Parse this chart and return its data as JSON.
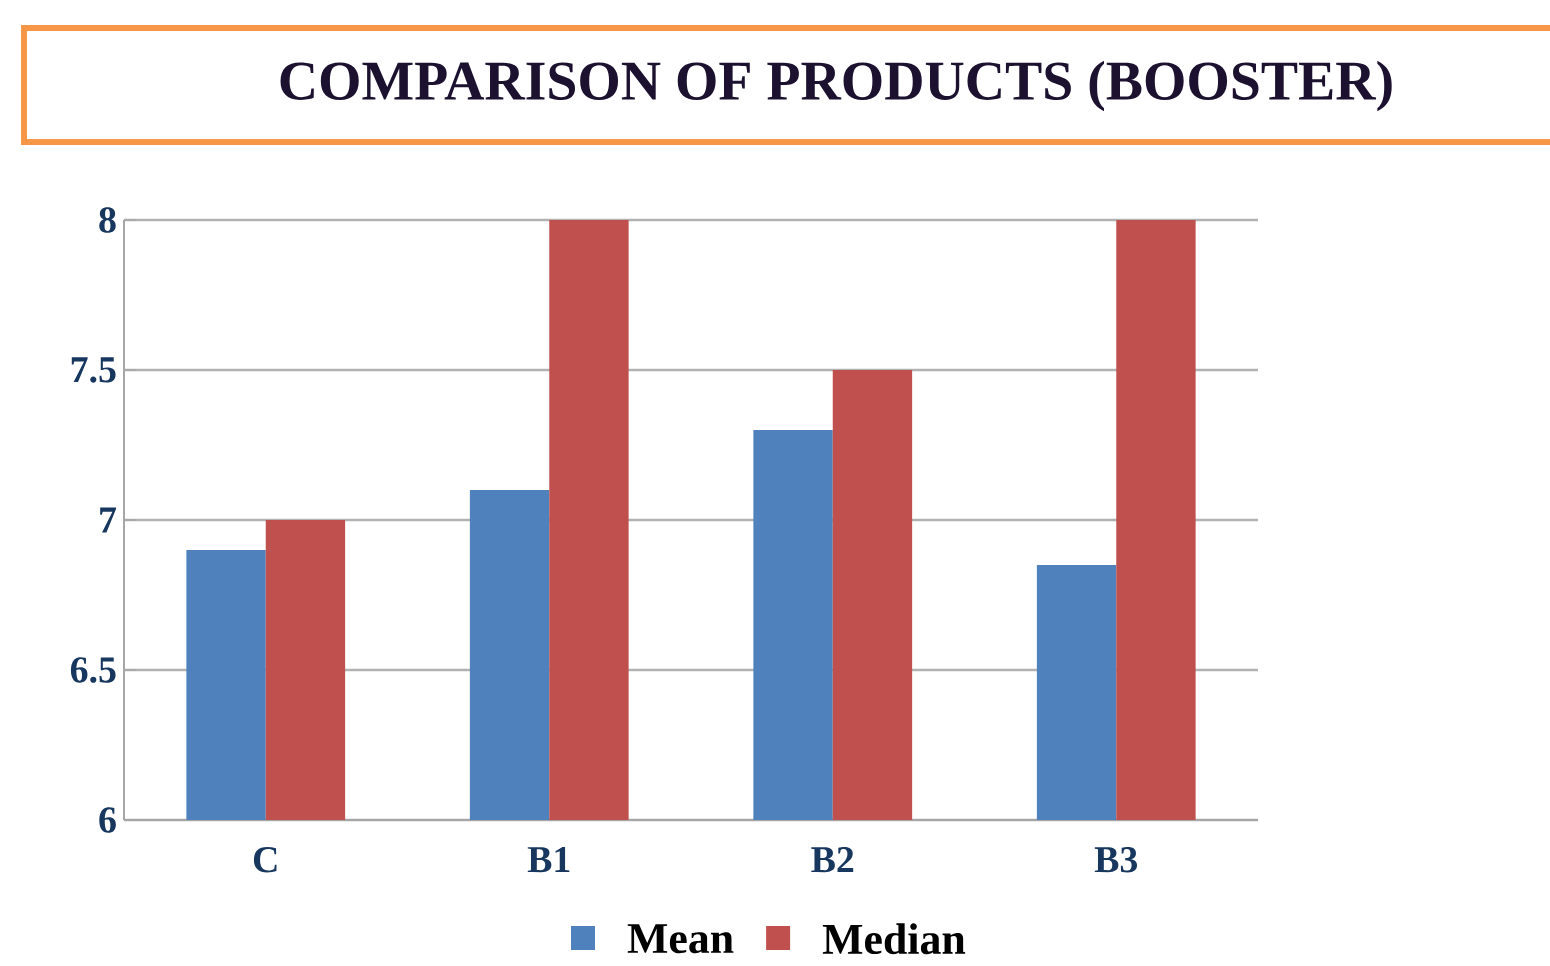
{
  "chart_data": {
    "type": "bar",
    "title": "COMPARISON OF PRODUCTS (BOOSTER)",
    "categories": [
      "C",
      "B1",
      "B2",
      "B3"
    ],
    "series": [
      {
        "name": "Mean",
        "color": "#4f81bd",
        "values": [
          6.9,
          7.1,
          7.3,
          6.85
        ]
      },
      {
        "name": "Median",
        "color": "#c0504d",
        "values": [
          7,
          8,
          7.5,
          8
        ]
      }
    ],
    "ylim": [
      6,
      8
    ],
    "yticks": [
      6,
      6.5,
      7,
      7.5,
      8
    ],
    "grid": "y",
    "legend": "bottom"
  }
}
